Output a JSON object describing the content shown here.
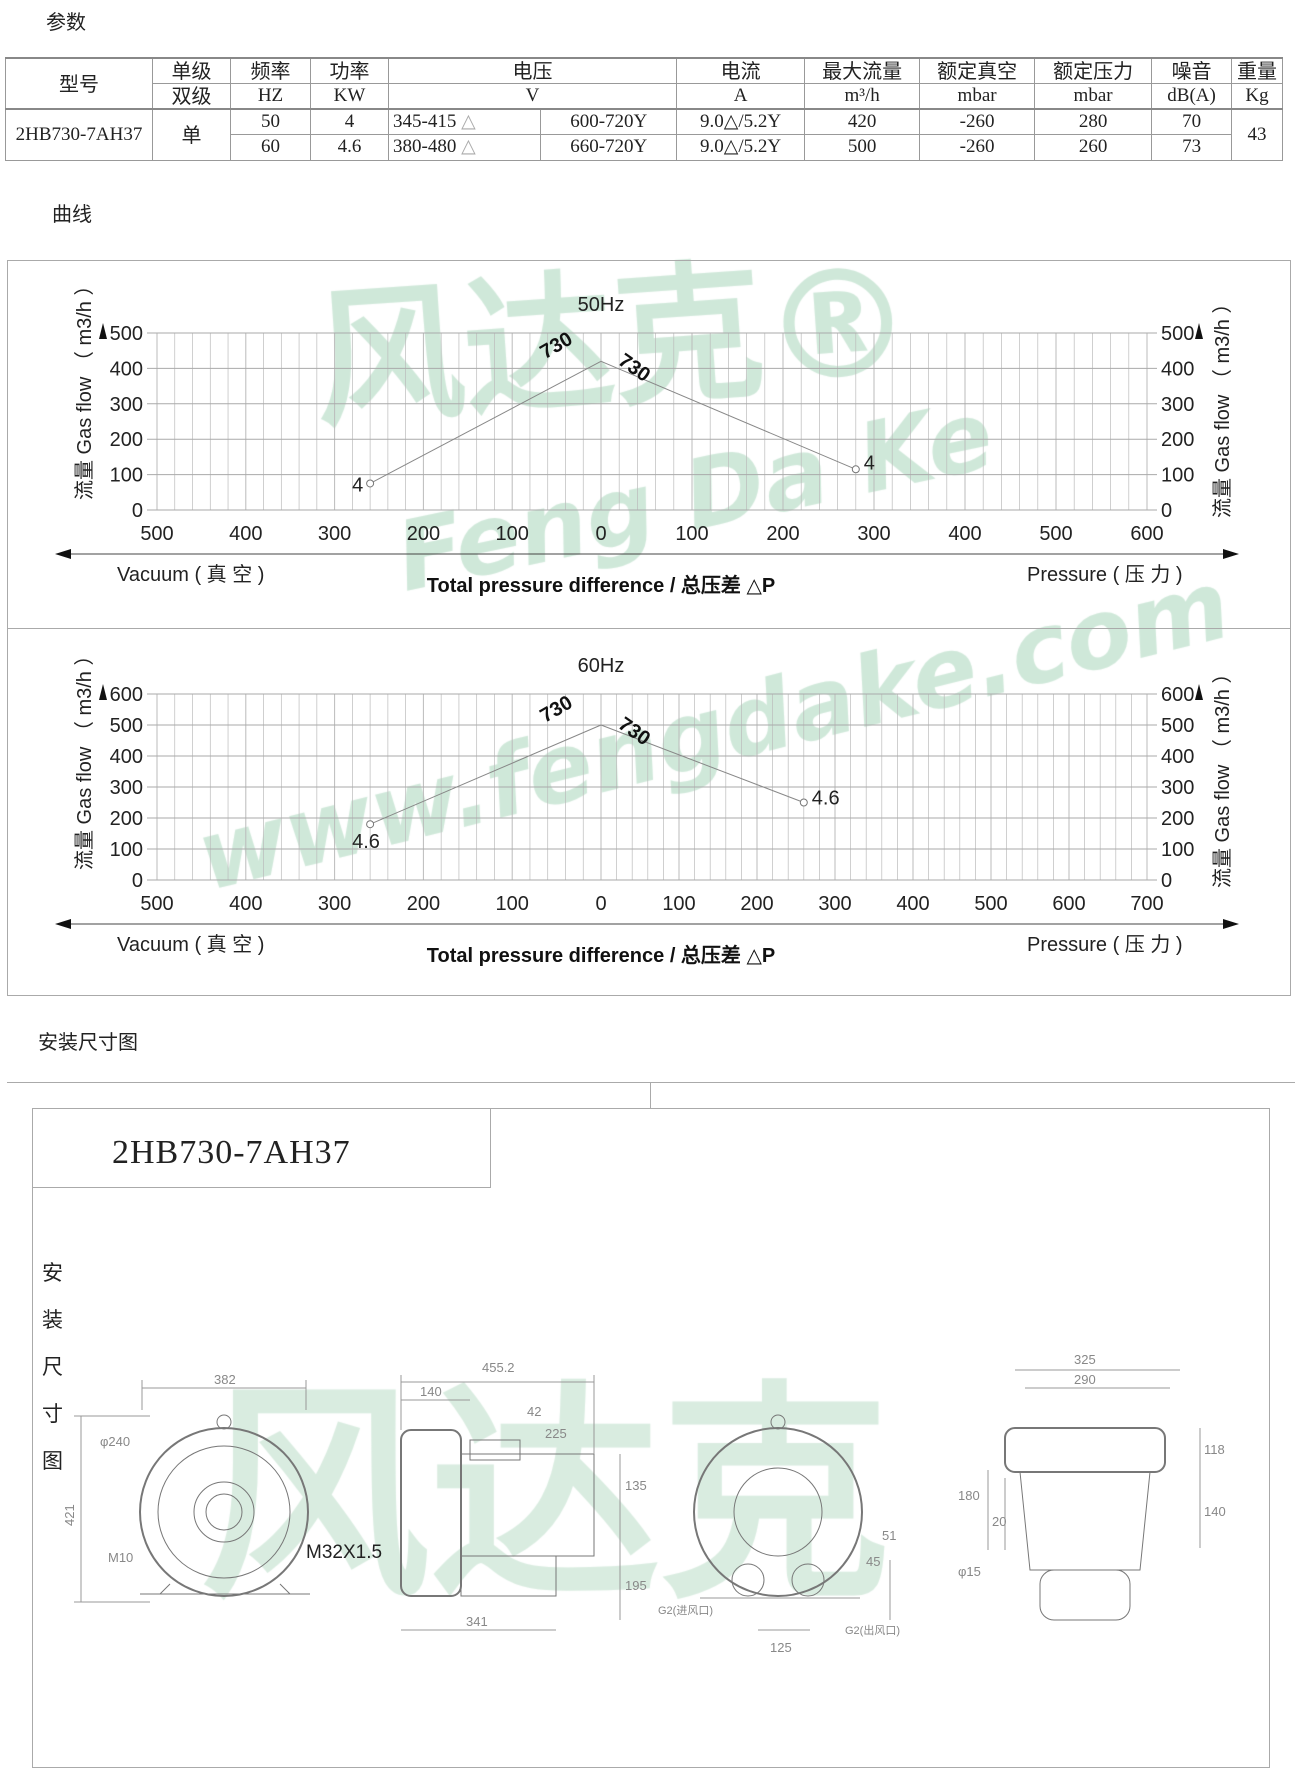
{
  "sections": {
    "params": "参数",
    "curves": "曲线",
    "install": "安装尺寸图"
  },
  "table": {
    "headers": {
      "model": "型号",
      "stage": [
        "单级",
        "双级"
      ],
      "freq": [
        "频率",
        "HZ"
      ],
      "power": [
        "功率",
        "KW"
      ],
      "voltage": [
        "电压",
        "V"
      ],
      "current": [
        "电流",
        "A"
      ],
      "max_flow": [
        "最大流量",
        "m³/h"
      ],
      "vacuum": [
        "额定真空",
        "mbar"
      ],
      "pressure": [
        "额定压力",
        "mbar"
      ],
      "noise": [
        "噪音",
        "dB(A)"
      ],
      "weight": [
        "重量",
        "Kg"
      ]
    },
    "model": "2HB730-7AH37",
    "stage": "单",
    "weight": "43",
    "rows": [
      {
        "freq": "50",
        "power": "4",
        "v_delta": "345-415",
        "v_star": "600-720Y",
        "current": "9.0△/5.2Y",
        "max_flow": "420",
        "vacuum": "-260",
        "pressure": "280",
        "noise": "70"
      },
      {
        "freq": "60",
        "power": "4.6",
        "v_delta": "380-480",
        "v_star": "660-720Y",
        "current": "9.0△/5.2Y",
        "max_flow": "500",
        "vacuum": "-260",
        "pressure": "260",
        "noise": "73"
      }
    ]
  },
  "chart_data": [
    {
      "type": "line",
      "title": "50Hz",
      "ylabel": "流量 Gas flow （ m3/h ）",
      "xlabel": "Total pressure difference / 总压差  △P",
      "xlabel_left": "Vacuum ( 真 空 )",
      "xlabel_right": "Pressure ( 压 力 )",
      "ylim": [
        0,
        500
      ],
      "yticks": [
        "0",
        "100",
        "200",
        "300",
        "400",
        "500"
      ],
      "vacuum_ticks": [
        "500",
        "400",
        "300",
        "200",
        "100",
        "0"
      ],
      "pressure_ticks": [
        "0",
        "100",
        "200",
        "300",
        "400",
        "500",
        "600"
      ],
      "vacuum_max": 500,
      "pressure_max": 600,
      "grid": true,
      "series": [
        {
          "side": "vacuum",
          "points": [
            [
              0,
              420
            ],
            [
              260,
              75
            ]
          ],
          "start_label": "730",
          "end_label": "4"
        },
        {
          "side": "pressure",
          "points": [
            [
              0,
              420
            ],
            [
              280,
              115
            ]
          ],
          "start_label": "730",
          "end_label": "4"
        }
      ]
    },
    {
      "type": "line",
      "title": "60Hz",
      "ylabel": "流量 Gas flow （ m3/h ）",
      "xlabel": "Total pressure difference / 总压差  △P",
      "xlabel_left": "Vacuum ( 真 空 )",
      "xlabel_right": "Pressure ( 压 力 )",
      "ylim": [
        0,
        600
      ],
      "yticks": [
        "0",
        "100",
        "200",
        "300",
        "400",
        "500",
        "600"
      ],
      "vacuum_ticks": [
        "500",
        "400",
        "300",
        "200",
        "100",
        "0"
      ],
      "pressure_ticks": [
        "0",
        "100",
        "200",
        "300",
        "400",
        "500",
        "600",
        "700"
      ],
      "vacuum_max": 500,
      "pressure_max": 700,
      "grid": true,
      "series": [
        {
          "side": "vacuum",
          "points": [
            [
              0,
              500
            ],
            [
              260,
              180
            ]
          ],
          "start_label": "730",
          "end_label": "4.6"
        },
        {
          "side": "pressure",
          "points": [
            [
              0,
              500
            ],
            [
              260,
              250
            ]
          ],
          "start_label": "730",
          "end_label": "4.6"
        }
      ]
    }
  ],
  "drawing": {
    "model_title": "2HB730-7AH37",
    "side_label": [
      "安",
      "装",
      "尺",
      "寸",
      "图"
    ],
    "dims": {
      "d382": "382",
      "d240": "φ240",
      "d421": "421",
      "m10": "M10",
      "d455": "455.2",
      "d140a": "140",
      "d42": "42",
      "d225": "225",
      "d135": "135",
      "d195": "195",
      "d341": "341",
      "m32": "M32X1.5",
      "g2in": "G2(进风口)",
      "g2out": "G2(出风口)",
      "d45": "45",
      "d51": "51",
      "d125": "125",
      "d325": "325",
      "d290": "290",
      "d118": "118",
      "d140b": "140",
      "d180": "180",
      "d20": "20",
      "d15": "φ15"
    }
  },
  "watermarks": [
    "风达克®",
    "Feng Da Ke",
    "www.fengdake.com"
  ],
  "colors": {
    "watermark": "#bfe0cc",
    "line": "#999999"
  }
}
